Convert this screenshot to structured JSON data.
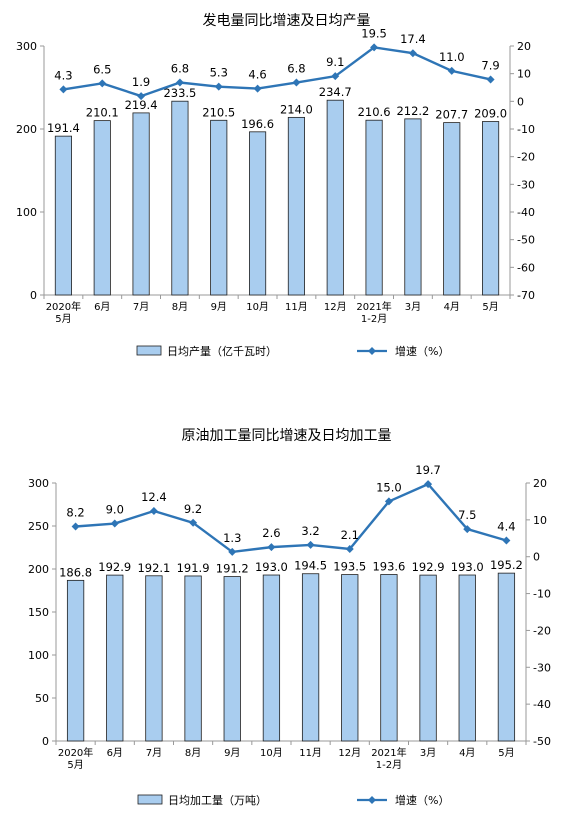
{
  "charts": [
    {
      "title": "发电量同比增速及日均产量",
      "categories": [
        "2020年\n5月",
        "6月",
        "7月",
        "8月",
        "9月",
        "10月",
        "11月",
        "12月",
        "2021年\n1-2月",
        "3月",
        "4月",
        "5月"
      ],
      "bar_legend": "日均产量（亿千瓦时）",
      "line_legend": "增速（%）",
      "bar_values": [
        191.4,
        210.1,
        219.4,
        233.5,
        210.5,
        196.6,
        214.0,
        234.7,
        210.6,
        212.2,
        207.7,
        209.0
      ],
      "line_values": [
        4.3,
        6.5,
        1.9,
        6.8,
        5.3,
        4.6,
        6.8,
        9.1,
        19.5,
        17.4,
        11.0,
        7.9
      ],
      "left_axis": {
        "min": 0,
        "max": 300,
        "ticks": [
          0,
          100,
          200,
          300
        ]
      },
      "right_axis": {
        "min": -70,
        "max": 20,
        "ticks": [
          20,
          10,
          0,
          -10,
          -20,
          -30,
          -40,
          -50,
          -60,
          -70
        ]
      }
    },
    {
      "title": "原油加工量同比增速及日均加工量",
      "categories": [
        "2020年\n5月",
        "6月",
        "7月",
        "8月",
        "9月",
        "10月",
        "11月",
        "12月",
        "2021年\n1-2月",
        "3月",
        "4月",
        "5月"
      ],
      "bar_legend": "日均加工量（万吨）",
      "line_legend": "增速（%）",
      "bar_values": [
        186.8,
        192.9,
        192.1,
        191.9,
        191.2,
        193.0,
        194.5,
        193.5,
        193.6,
        192.9,
        193.0,
        195.2
      ],
      "line_values": [
        8.2,
        9.0,
        12.4,
        9.2,
        1.3,
        2.6,
        3.2,
        2.1,
        15.0,
        19.7,
        7.5,
        4.4
      ],
      "left_axis": {
        "min": 0,
        "max": 300,
        "ticks": [
          0,
          50,
          100,
          150,
          200,
          250,
          300
        ]
      },
      "right_axis": {
        "min": -50,
        "max": 20,
        "ticks": [
          20,
          10,
          0,
          -10,
          -20,
          -30,
          -40,
          -50
        ]
      }
    }
  ],
  "colors": {
    "bar_fill": "#a9cdef",
    "bar_stroke": "#1f1f1f",
    "line": "#2e75b6",
    "axis": "#999999",
    "text": "#000000"
  },
  "chart_data": [
    {
      "type": "bar+line",
      "title": "发电量同比增速及日均产量",
      "categories": [
        "2020年5月",
        "6月",
        "7月",
        "8月",
        "9月",
        "10月",
        "11月",
        "12月",
        "2021年1-2月",
        "3月",
        "4月",
        "5月"
      ],
      "series": [
        {
          "name": "日均产量（亿千瓦时）",
          "type": "bar",
          "axis": "left",
          "values": [
            191.4,
            210.1,
            219.4,
            233.5,
            210.5,
            196.6,
            214.0,
            234.7,
            210.6,
            212.2,
            207.7,
            209.0
          ]
        },
        {
          "name": "增速（%）",
          "type": "line",
          "axis": "right",
          "values": [
            4.3,
            6.5,
            1.9,
            6.8,
            5.3,
            4.6,
            6.8,
            9.1,
            19.5,
            17.4,
            11.0,
            7.9
          ]
        }
      ],
      "ylim_left": [
        0,
        300
      ],
      "ylim_right": [
        -70,
        20
      ],
      "legend": "bottom",
      "grid": false
    },
    {
      "type": "bar+line",
      "title": "原油加工量同比增速及日均加工量",
      "categories": [
        "2020年5月",
        "6月",
        "7月",
        "8月",
        "9月",
        "10月",
        "11月",
        "12月",
        "2021年1-2月",
        "3月",
        "4月",
        "5月"
      ],
      "series": [
        {
          "name": "日均加工量（万吨）",
          "type": "bar",
          "axis": "left",
          "values": [
            186.8,
            192.9,
            192.1,
            191.9,
            191.2,
            193.0,
            194.5,
            193.5,
            193.6,
            192.9,
            193.0,
            195.2
          ]
        },
        {
          "name": "增速（%）",
          "type": "line",
          "axis": "right",
          "values": [
            8.2,
            9.0,
            12.4,
            9.2,
            1.3,
            2.6,
            3.2,
            2.1,
            15.0,
            19.7,
            7.5,
            4.4
          ]
        }
      ],
      "ylim_left": [
        0,
        300
      ],
      "ylim_right": [
        -50,
        20
      ],
      "legend": "bottom",
      "grid": false
    }
  ]
}
